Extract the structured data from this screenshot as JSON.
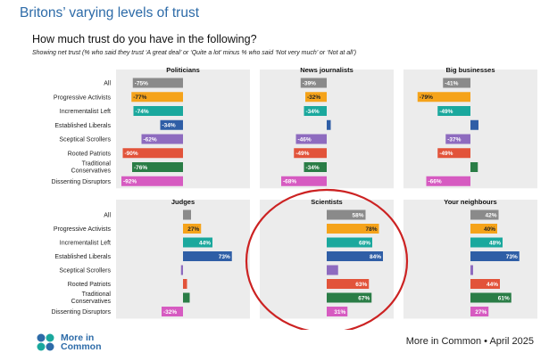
{
  "title": "Britons’ varying levels of trust",
  "question": "How much trust do you have in the following?",
  "subtitle": "Showing net trust (% who said they trust ‘A great deal’ or ‘Quite a lot’ minus % who said ‘Not very much’ or ‘Not at all’)",
  "footer": "More in Common • April 2025",
  "logo": {
    "line1": "More in",
    "line2": "Common"
  },
  "colors": {
    "All": "#8a8a8a",
    "Progressive Activists": "#f5a31a",
    "Incrementalist Left": "#1aa89d",
    "Established Liberals": "#2f5ea6",
    "Sceptical Scrollers": "#8e6bbf",
    "Rooted Patriots": "#e2533a",
    "Traditional Conservatives": "#2a7d46",
    "Dissenting Disruptors": "#d65bc1",
    "panel_bg": "#ececec",
    "highlight_circle": "#cc2222"
  },
  "chart_data": {
    "type": "bar",
    "orientation": "horizontal",
    "categories": [
      "All",
      "Progressive Activists",
      "Incrementalist Left",
      "Established Liberals",
      "Sceptical Scrollers",
      "Rooted Patriots",
      "Traditional Conservatives",
      "Dissenting Disruptors"
    ],
    "category_lines": [
      [
        "All"
      ],
      [
        "Progressive Activists"
      ],
      [
        "Incrementalist Left"
      ],
      [
        "Established Liberals"
      ],
      [
        "Sceptical Scrollers"
      ],
      [
        "Rooted Patriots"
      ],
      [
        "Traditional",
        "Conservatives"
      ],
      [
        "Dissenting Disruptors"
      ]
    ],
    "xlim": [
      -100,
      100
    ],
    "panels": [
      {
        "title": "Politicians",
        "values": [
          -75,
          -77,
          -74,
          -34,
          -62,
          -90,
          -76,
          -92
        ],
        "labels": [
          "-75%",
          "-77%",
          "-74%",
          "-34%",
          "-62%",
          "-90%",
          "-76%",
          "-92%"
        ]
      },
      {
        "title": "News journalists",
        "values": [
          -39,
          -32,
          -34,
          6,
          -46,
          -49,
          -34,
          -68
        ],
        "labels": [
          "-39%",
          "-32%",
          "-34%",
          "",
          "-46%",
          "-49%",
          "-34%",
          "-68%"
        ]
      },
      {
        "title": "Big businesses",
        "values": [
          -41,
          -79,
          -49,
          12,
          -37,
          -49,
          11,
          -66
        ],
        "labels": [
          "-41%",
          "-79%",
          "-49%",
          "",
          "-37%",
          "-49%",
          "",
          "-66%"
        ]
      },
      {
        "title": "Judges",
        "values": [
          12,
          27,
          44,
          73,
          -3,
          6,
          10,
          -32
        ],
        "labels": [
          "",
          "27%",
          "44%",
          "73%",
          "",
          "",
          "",
          "-32%"
        ]
      },
      {
        "title": "Scientists",
        "values": [
          58,
          78,
          68,
          84,
          17,
          63,
          67,
          31
        ],
        "labels": [
          "58%",
          "78%",
          "68%",
          "84%",
          "",
          "63%",
          "67%",
          "31%"
        ]
      },
      {
        "title": "Your neighbours",
        "values": [
          42,
          40,
          48,
          73,
          4,
          44,
          61,
          27
        ],
        "labels": [
          "42%",
          "40%",
          "48%",
          "73%",
          "",
          "44%",
          "61%",
          "27%"
        ]
      }
    ],
    "annotation": "Scientists panel circled in red"
  }
}
